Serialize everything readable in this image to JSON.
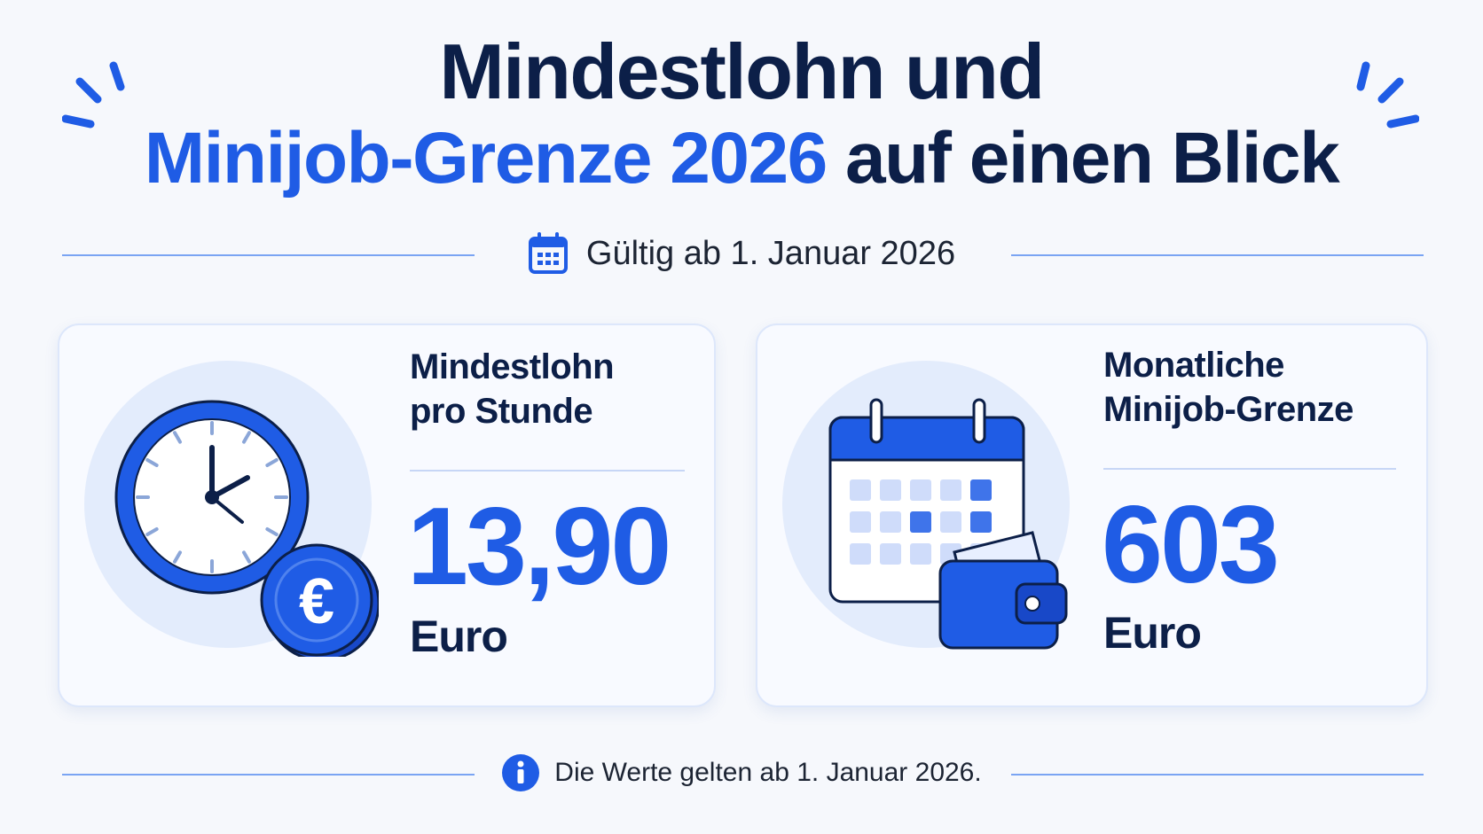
{
  "title": {
    "line1": "Mindestlohn und",
    "line2_accent": "Minijob-Grenze 2026",
    "line2_rest": " auf einen Blick"
  },
  "subtitle": {
    "icon": "calendar-icon",
    "text": "Gültig ab 1. Januar 2026"
  },
  "cards": {
    "min_wage": {
      "icon": "clock-euro-coin-icon",
      "label_line1": "Mindestlohn",
      "label_line2": "pro Stunde",
      "value": "13,90",
      "unit": "Euro"
    },
    "minijob": {
      "icon": "calendar-wallet-icon",
      "label_line1": "Monatliche",
      "label_line2": "Minijob-Grenze",
      "value": "603",
      "unit": "Euro"
    }
  },
  "footer": {
    "icon": "info-icon",
    "text": "Die Werte gelten ab 1. Januar 2026."
  },
  "colors": {
    "accent": "#1f5ce5",
    "dark": "#0c1f48",
    "background": "#f6f8fc"
  }
}
